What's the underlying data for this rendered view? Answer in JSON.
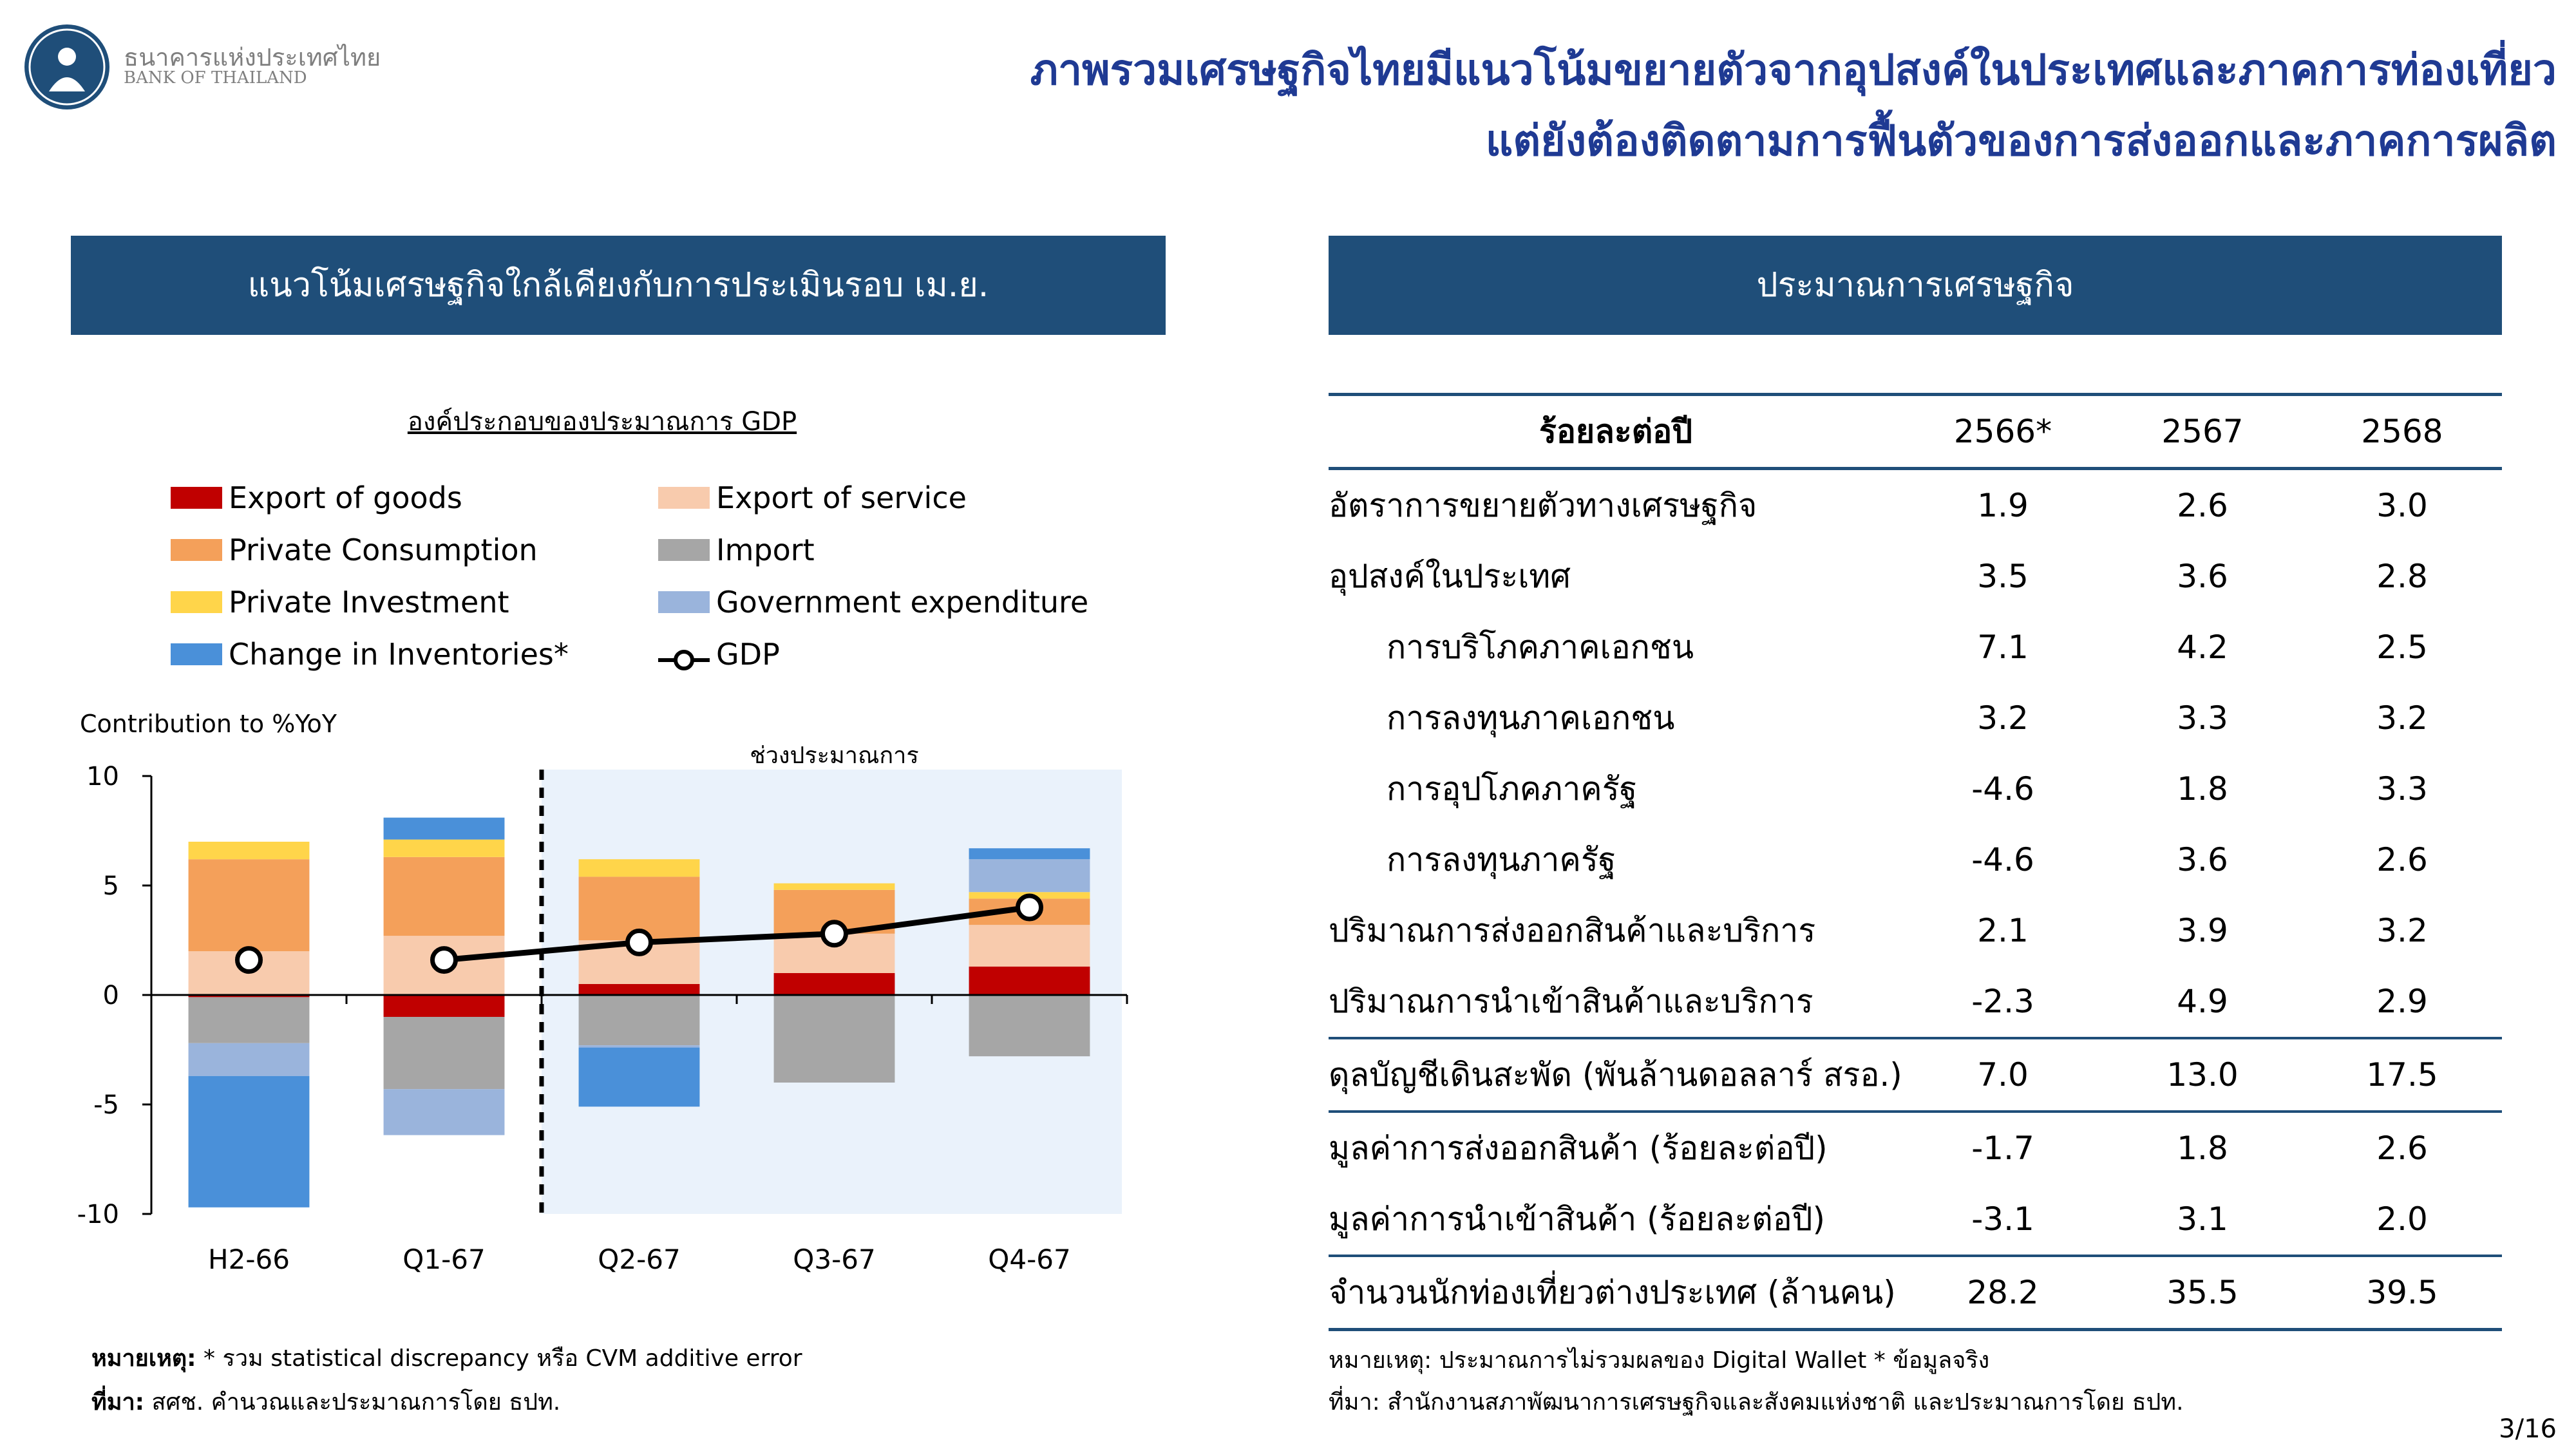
{
  "logo": {
    "name_th": "ธนาคารแห่งประเทศไทย",
    "name_en": "BANK OF THAILAND"
  },
  "title": {
    "line1": "ภาพรวมเศรษฐกิจไทยมีแนวโน้มขยายตัวจากอุปสงค์ในประเทศและภาคการท่องเที่ยว",
    "line2": "แต่ยังต้องติดตามการฟื้นตัวของการส่งออกและภาคการผลิต"
  },
  "left_panel": {
    "header": "แนวโน้มเศรษฐกิจใกล้เคียงกับการประเมินรอบ เม.ย."
  },
  "right_panel": {
    "header": "ประมาณการเศรษฐกิจ"
  },
  "colors": {
    "brand": "#1f4e79",
    "title": "#1f3a93",
    "export_goods": "#c00000",
    "export_service": "#f8cbad",
    "private_consumption": "#f4a05a",
    "import": "#a6a6a6",
    "private_investment": "#ffd54a",
    "government_expenditure": "#9ab4dc",
    "inventories": "#4a90d9",
    "forecast_bg": "#eaf2fb"
  },
  "chart_data": {
    "type": "bar",
    "stacked": true,
    "title": "องค์ประกอบของประมาณการ GDP",
    "ylabel": "Contribution to %YoY",
    "ylim": [
      -10,
      10
    ],
    "yticks": [
      10,
      5,
      0,
      -5,
      -10
    ],
    "categories": [
      "H2-66",
      "Q1-67",
      "Q2-67",
      "Q3-67",
      "Q4-67"
    ],
    "forecast_label": "ช่วงประมาณการ",
    "forecast_start_index": 2,
    "series": [
      {
        "name": "Export of goods",
        "color": "#c00000",
        "values": [
          -0.1,
          -1.0,
          0.5,
          1.0,
          1.3
        ]
      },
      {
        "name": "Export of service",
        "color": "#f8cbad",
        "values": [
          2.0,
          2.7,
          2.0,
          1.8,
          1.9
        ]
      },
      {
        "name": "Private Consumption",
        "color": "#f4a05a",
        "values": [
          4.2,
          3.6,
          2.9,
          2.0,
          1.2
        ]
      },
      {
        "name": "Import",
        "color": "#a6a6a6",
        "values": [
          -2.1,
          -3.3,
          -2.3,
          -4.0,
          -2.8
        ]
      },
      {
        "name": "Private Investment",
        "color": "#ffd54a",
        "values": [
          0.8,
          0.8,
          0.8,
          0.3,
          0.3
        ]
      },
      {
        "name": "Government expenditure",
        "color": "#9ab4dc",
        "values": [
          -1.5,
          -2.1,
          -0.1,
          0,
          1.5
        ]
      },
      {
        "name": "Change in Inventories*",
        "color": "#4a90d9",
        "values": [
          -6.0,
          1.0,
          -2.7,
          0,
          0.5
        ]
      }
    ],
    "line_series": {
      "name": "GDP",
      "values": [
        1.6,
        1.6,
        2.4,
        2.8,
        4.0
      ]
    }
  },
  "left_notes": {
    "note_label": "หมายเหตุ:",
    "note_text": " * รวม statistical discrepancy หรือ CVM additive error",
    "source_label": "ที่มา:",
    "source_text": " สศช. คำนวณและประมาณการโดย ธปท."
  },
  "table": {
    "header": [
      "ร้อยละต่อปี",
      "2566*",
      "2567",
      "2568"
    ],
    "rows": [
      {
        "label": "อัตราการขยายตัวทางเศรษฐกิจ",
        "values": [
          "1.9",
          "2.6",
          "3.0"
        ]
      },
      {
        "label": "อุปสงค์ในประเทศ",
        "values": [
          "3.5",
          "3.6",
          "2.8"
        ]
      },
      {
        "label": "การบริโภคภาคเอกชน",
        "values": [
          "7.1",
          "4.2",
          "2.5"
        ]
      },
      {
        "label": "การลงทุนภาคเอกชน",
        "values": [
          "3.2",
          "3.3",
          "3.2"
        ]
      },
      {
        "label": "การอุปโภคภาครัฐ",
        "values": [
          "-4.6",
          "1.8",
          "3.3"
        ]
      },
      {
        "label": "การลงทุนภาครัฐ",
        "values": [
          "-4.6",
          "3.6",
          "2.6"
        ]
      },
      {
        "label": "ปริมาณการส่งออกสินค้าและบริการ",
        "values": [
          "2.1",
          "3.9",
          "3.2"
        ]
      },
      {
        "label": "ปริมาณการนำเข้าสินค้าและบริการ",
        "values": [
          "-2.3",
          "4.9",
          "2.9"
        ]
      },
      {
        "label": "ดุลบัญชีเดินสะพัด (พันล้านดอลลาร์ สรอ.)",
        "values": [
          "7.0",
          "13.0",
          "17.5"
        ]
      },
      {
        "label": "มูลค่าการส่งออกสินค้า (ร้อยละต่อปี)",
        "values": [
          "-1.7",
          "1.8",
          "2.6"
        ]
      },
      {
        "label": "มูลค่าการนำเข้าสินค้า (ร้อยละต่อปี)",
        "values": [
          "-3.1",
          "3.1",
          "2.0"
        ]
      },
      {
        "label": "จำนวนนักท่องเที่ยวต่างประเทศ (ล้านคน)",
        "values": [
          "28.2",
          "35.5",
          "39.5"
        ]
      }
    ]
  },
  "right_notes": {
    "note": "หมายเหตุ: ประมาณการไม่รวมผลของ Digital Wallet       * ข้อมูลจริง",
    "source": "ที่มา: สำนักงานสภาพัฒนาการเศรษฐกิจและสังคมแห่งชาติ และประมาณการโดย ธปท."
  },
  "page_number": "3/16"
}
